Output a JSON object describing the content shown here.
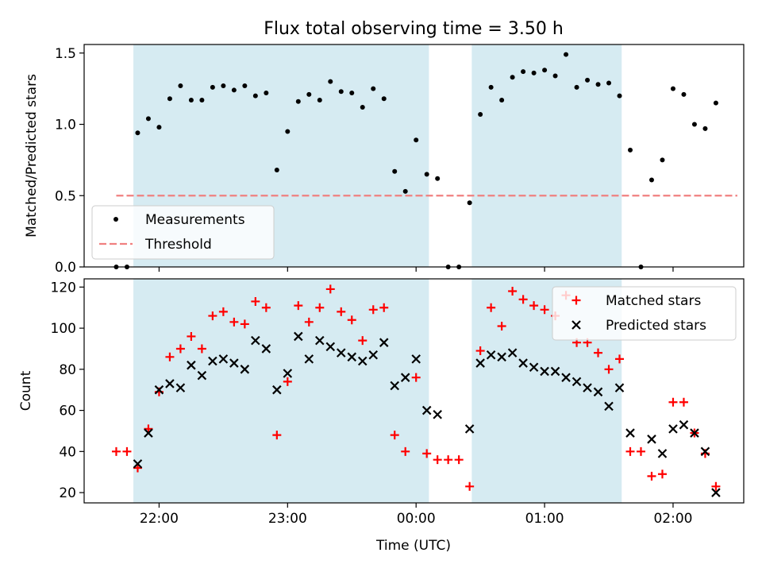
{
  "title": "Flux total observing time = 3.50 h",
  "chart_data": [
    {
      "type": "scatter",
      "ylabel": "Matched/Predicted stars",
      "xlabel": "",
      "ylim": [
        0,
        1.56
      ],
      "yticks": [
        "0.0",
        "0.5",
        "1.0",
        "1.5"
      ],
      "xlim": [
        "21:25",
        "02:33"
      ],
      "grid": false,
      "legend_position": "lower-left",
      "shaded_intervals": [
        [
          "21:48",
          "00:06"
        ],
        [
          "00:26",
          "01:36"
        ]
      ],
      "threshold": {
        "label": "Threshold",
        "value": 0.5,
        "x_range": [
          "21:40",
          "02:30"
        ],
        "color": "#f08080"
      },
      "series": [
        {
          "name": "Measurements",
          "marker": "dot",
          "color": "#000000",
          "points": [
            [
              "21:40",
              0.0
            ],
            [
              "21:45",
              0.0
            ],
            [
              "21:50",
              0.94
            ],
            [
              "21:55",
              1.04
            ],
            [
              "22:00",
              0.98
            ],
            [
              "22:05",
              1.18
            ],
            [
              "22:10",
              1.27
            ],
            [
              "22:15",
              1.17
            ],
            [
              "22:20",
              1.17
            ],
            [
              "22:25",
              1.26
            ],
            [
              "22:30",
              1.27
            ],
            [
              "22:35",
              1.24
            ],
            [
              "22:40",
              1.27
            ],
            [
              "22:45",
              1.2
            ],
            [
              "22:50",
              1.22
            ],
            [
              "22:55",
              0.68
            ],
            [
              "23:00",
              0.95
            ],
            [
              "23:05",
              1.16
            ],
            [
              "23:10",
              1.21
            ],
            [
              "23:15",
              1.17
            ],
            [
              "23:20",
              1.3
            ],
            [
              "23:25",
              1.23
            ],
            [
              "23:30",
              1.22
            ],
            [
              "23:35",
              1.12
            ],
            [
              "23:40",
              1.25
            ],
            [
              "23:45",
              1.18
            ],
            [
              "23:50",
              0.67
            ],
            [
              "23:55",
              0.53
            ],
            [
              "00:00",
              0.89
            ],
            [
              "00:05",
              0.65
            ],
            [
              "00:10",
              0.62
            ],
            [
              "00:15",
              0.0
            ],
            [
              "00:20",
              0.0
            ],
            [
              "00:25",
              0.45
            ],
            [
              "00:30",
              1.07
            ],
            [
              "00:35",
              1.26
            ],
            [
              "00:40",
              1.17
            ],
            [
              "00:45",
              1.33
            ],
            [
              "00:50",
              1.37
            ],
            [
              "00:55",
              1.36
            ],
            [
              "01:00",
              1.38
            ],
            [
              "01:05",
              1.34
            ],
            [
              "01:10",
              1.49
            ],
            [
              "01:15",
              1.26
            ],
            [
              "01:20",
              1.31
            ],
            [
              "01:25",
              1.28
            ],
            [
              "01:30",
              1.29
            ],
            [
              "01:35",
              1.2
            ],
            [
              "01:40",
              0.82
            ],
            [
              "01:45",
              0.0
            ],
            [
              "01:50",
              0.61
            ],
            [
              "01:55",
              0.75
            ],
            [
              "02:00",
              1.25
            ],
            [
              "02:05",
              1.21
            ],
            [
              "02:10",
              1.0
            ],
            [
              "02:15",
              0.97
            ],
            [
              "02:20",
              1.15
            ]
          ]
        }
      ]
    },
    {
      "type": "scatter",
      "ylabel": "Count",
      "xlabel": "Time (UTC)",
      "ylim": [
        15,
        124
      ],
      "yticks": [
        "20",
        "40",
        "60",
        "80",
        "100",
        "120"
      ],
      "xlim": [
        "21:25",
        "02:33"
      ],
      "xticks": [
        "22:00",
        "23:00",
        "00:00",
        "01:00",
        "02:00"
      ],
      "grid": false,
      "legend_position": "upper-right",
      "shaded_intervals": [
        [
          "21:48",
          "00:06"
        ],
        [
          "00:26",
          "01:36"
        ]
      ],
      "series": [
        {
          "name": "Matched stars",
          "marker": "plus",
          "color": "#ff0000",
          "points": [
            [
              "21:40",
              40
            ],
            [
              "21:45",
              40
            ],
            [
              "21:50",
              32
            ],
            [
              "21:55",
              51
            ],
            [
              "22:00",
              69
            ],
            [
              "22:05",
              86
            ],
            [
              "22:10",
              90
            ],
            [
              "22:15",
              96
            ],
            [
              "22:20",
              90
            ],
            [
              "22:25",
              106
            ],
            [
              "22:30",
              108
            ],
            [
              "22:35",
              103
            ],
            [
              "22:40",
              102
            ],
            [
              "22:45",
              113
            ],
            [
              "22:50",
              110
            ],
            [
              "22:55",
              48
            ],
            [
              "23:00",
              74
            ],
            [
              "23:05",
              111
            ],
            [
              "23:10",
              103
            ],
            [
              "23:15",
              110
            ],
            [
              "23:20",
              119
            ],
            [
              "23:25",
              108
            ],
            [
              "23:30",
              104
            ],
            [
              "23:35",
              94
            ],
            [
              "23:40",
              109
            ],
            [
              "23:45",
              110
            ],
            [
              "23:50",
              48
            ],
            [
              "23:55",
              40
            ],
            [
              "00:00",
              76
            ],
            [
              "00:05",
              39
            ],
            [
              "00:10",
              36
            ],
            [
              "00:15",
              36
            ],
            [
              "00:20",
              36
            ],
            [
              "00:25",
              23
            ],
            [
              "00:30",
              89
            ],
            [
              "00:35",
              110
            ],
            [
              "00:40",
              101
            ],
            [
              "00:45",
              118
            ],
            [
              "00:50",
              114
            ],
            [
              "00:55",
              111
            ],
            [
              "01:00",
              109
            ],
            [
              "01:05",
              106
            ],
            [
              "01:10",
              116
            ],
            [
              "01:15",
              93
            ],
            [
              "01:20",
              93
            ],
            [
              "01:25",
              88
            ],
            [
              "01:30",
              80
            ],
            [
              "01:35",
              85
            ],
            [
              "01:40",
              40
            ],
            [
              "01:45",
              40
            ],
            [
              "01:50",
              28
            ],
            [
              "01:55",
              29
            ],
            [
              "02:00",
              64
            ],
            [
              "02:05",
              64
            ],
            [
              "02:10",
              49
            ],
            [
              "02:15",
              39
            ],
            [
              "02:20",
              23
            ]
          ]
        },
        {
          "name": "Predicted stars",
          "marker": "x",
          "color": "#000000",
          "points": [
            [
              "21:50",
              34
            ],
            [
              "21:55",
              49
            ],
            [
              "22:00",
              70
            ],
            [
              "22:05",
              73
            ],
            [
              "22:10",
              71
            ],
            [
              "22:15",
              82
            ],
            [
              "22:20",
              77
            ],
            [
              "22:25",
              84
            ],
            [
              "22:30",
              85
            ],
            [
              "22:35",
              83
            ],
            [
              "22:40",
              80
            ],
            [
              "22:45",
              94
            ],
            [
              "22:50",
              90
            ],
            [
              "22:55",
              70
            ],
            [
              "23:00",
              78
            ],
            [
              "23:05",
              96
            ],
            [
              "23:10",
              85
            ],
            [
              "23:15",
              94
            ],
            [
              "23:20",
              91
            ],
            [
              "23:25",
              88
            ],
            [
              "23:30",
              86
            ],
            [
              "23:35",
              84
            ],
            [
              "23:40",
              87
            ],
            [
              "23:45",
              93
            ],
            [
              "23:50",
              72
            ],
            [
              "23:55",
              76
            ],
            [
              "00:00",
              85
            ],
            [
              "00:05",
              60
            ],
            [
              "00:10",
              58
            ],
            [
              "00:25",
              51
            ],
            [
              "00:30",
              83
            ],
            [
              "00:35",
              87
            ],
            [
              "00:40",
              86
            ],
            [
              "00:45",
              88
            ],
            [
              "00:50",
              83
            ],
            [
              "00:55",
              81
            ],
            [
              "01:00",
              79
            ],
            [
              "01:05",
              79
            ],
            [
              "01:10",
              76
            ],
            [
              "01:15",
              74
            ],
            [
              "01:20",
              71
            ],
            [
              "01:25",
              69
            ],
            [
              "01:30",
              62
            ],
            [
              "01:35",
              71
            ],
            [
              "01:40",
              49
            ],
            [
              "01:50",
              46
            ],
            [
              "01:55",
              39
            ],
            [
              "02:00",
              51
            ],
            [
              "02:05",
              53
            ],
            [
              "02:10",
              49
            ],
            [
              "02:15",
              40
            ],
            [
              "02:20",
              20
            ]
          ]
        }
      ]
    }
  ]
}
